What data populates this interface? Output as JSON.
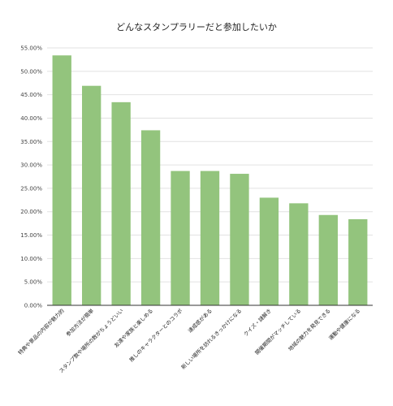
{
  "chart_data": {
    "type": "bar",
    "title": "どんなスタンプラリーだと参加したいか",
    "xlabel": "",
    "ylabel": "",
    "ylim": [
      0,
      55
    ],
    "y_tick_step": 5,
    "y_tick_format": "percent_2dp",
    "grid": true,
    "legend": "none",
    "bar_color": "#93c47d",
    "categories": [
      "特典や景品の内容が魅力的",
      "参加方法が簡単",
      "スタンプ数や場所の数がちょうどいい",
      "友達や家族と楽しめる",
      "推しのキャラクターとのコラボ",
      "達成感がある",
      "新しい場所を訪れるきっかけになる",
      "クイズ・謎解き",
      "開催期間がマッチしている",
      "地域の魅力を発見できる",
      "運動や健康になる"
    ],
    "values": [
      53.4,
      46.9,
      43.4,
      37.4,
      28.7,
      28.7,
      28.1,
      23.0,
      21.8,
      19.3,
      18.4
    ]
  }
}
